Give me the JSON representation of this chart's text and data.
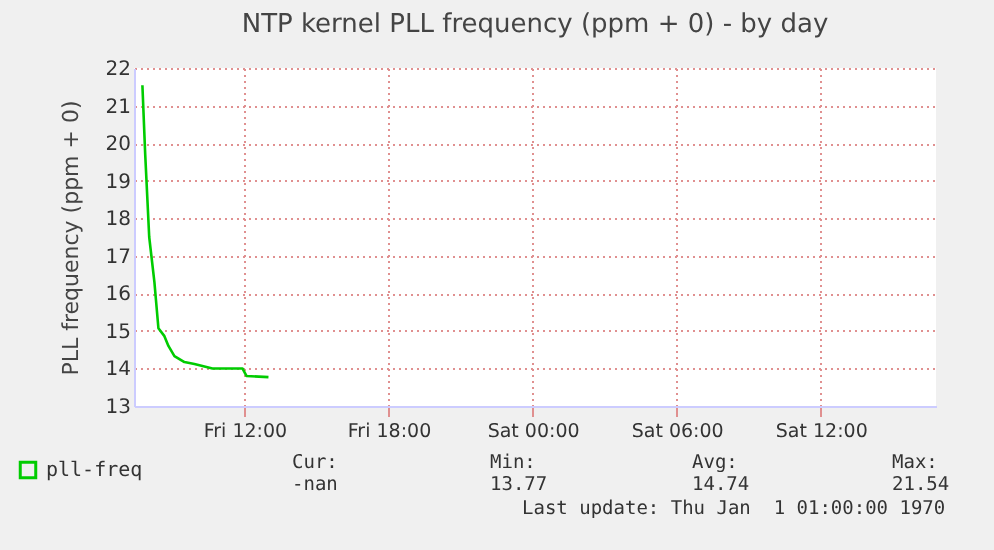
{
  "chart_data": {
    "type": "line",
    "title": "NTP kernel PLL frequency (ppm + 0) - by day",
    "ylabel": "PLL frequency (ppm + 0)",
    "x": [
      "1970-01-02T07:45",
      "1970-01-02T07:52",
      "1970-01-02T08:02",
      "1970-01-02T08:15",
      "1970-01-02T08:25",
      "1970-01-02T08:40",
      "1970-01-02T08:50",
      "1970-01-02T09:05",
      "1970-01-02T09:30",
      "1970-01-02T09:55",
      "1970-01-02T10:40",
      "1970-01-02T11:55",
      "1970-01-02T12:05",
      "1970-01-02T13:00"
    ],
    "series": [
      {
        "name": "pll-freq",
        "color": "#00cc00",
        "values": [
          21.54,
          19.7,
          17.5,
          16.3,
          15.07,
          14.86,
          14.6,
          14.33,
          14.17,
          14.12,
          14.0,
          14.0,
          13.8,
          13.77
        ]
      }
    ],
    "xlim": [
      "1970-01-02T07:24",
      "1970-01-03T16:48"
    ],
    "xticks": [
      {
        "value": "1970-01-02T12:00",
        "label": "Fri 12:00"
      },
      {
        "value": "1970-01-02T18:00",
        "label": "Fri 18:00"
      },
      {
        "value": "1970-01-03T00:00",
        "label": "Sat 00:00"
      },
      {
        "value": "1970-01-03T06:00",
        "label": "Sat 06:00"
      },
      {
        "value": "1970-01-03T12:00",
        "label": "Sat 12:00"
      }
    ],
    "ylim": [
      13,
      22
    ],
    "yticks": [
      13,
      14,
      15,
      16,
      17,
      18,
      19,
      20,
      21,
      22
    ],
    "grid": true,
    "legend": "bottom left",
    "line_style": "solid",
    "annotations": [
      "Cur:",
      "Min:",
      "Avg:",
      "Max:",
      "-nan",
      "13.77",
      "14.74",
      "21.54",
      "Last update: Thu Jan  1 01:00:00 1970"
    ]
  }
}
